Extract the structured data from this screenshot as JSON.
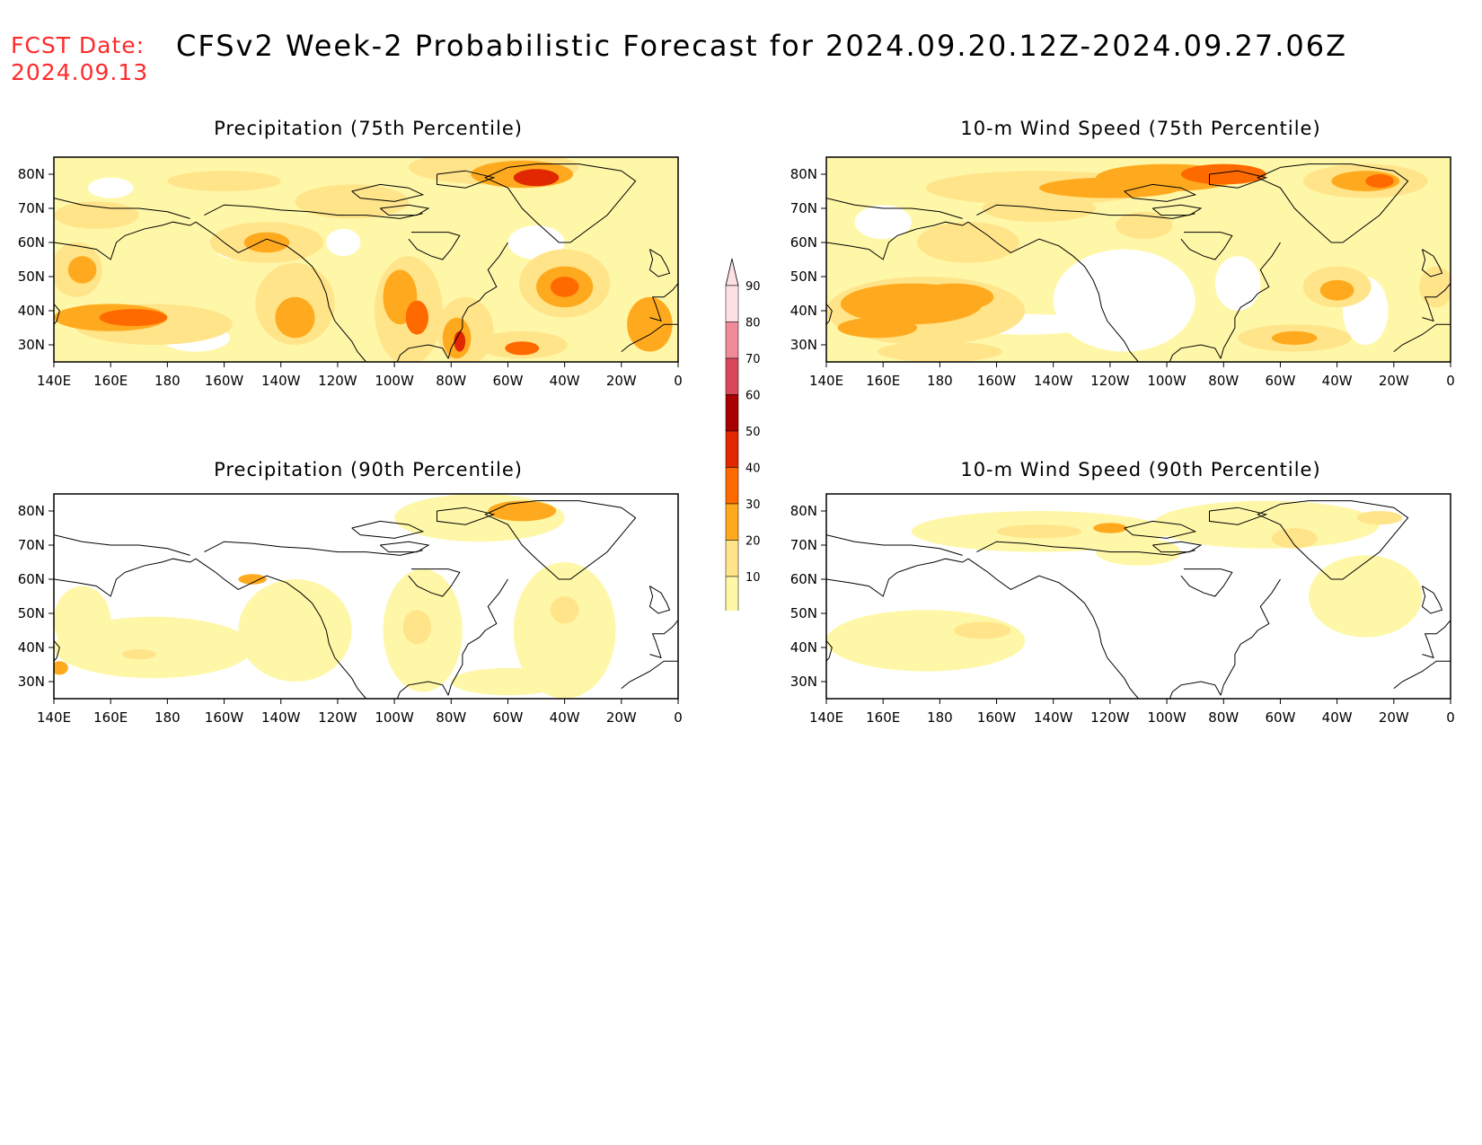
{
  "header": {
    "fcst_label": "FCST Date:",
    "fcst_date": "2024.09.13",
    "title": "CFSv2 Week-2 Probabilistic Forecast for 2024.09.20.12Z-2024.09.27.06Z"
  },
  "lon_ticks": [
    "140E",
    "160E",
    "180",
    "160W",
    "140W",
    "120W",
    "100W",
    "80W",
    "60W",
    "40W",
    "20W",
    "0"
  ],
  "lat_ticks": [
    "80N",
    "70N",
    "60N",
    "50N",
    "40N",
    "30N"
  ],
  "panels": [
    {
      "id": "p75",
      "title": "Precipitation (75th Percentile)",
      "intensity": "high",
      "type": "precip"
    },
    {
      "id": "w75",
      "title": "10-m Wind Speed (75th Percentile)",
      "intensity": "high",
      "type": "wind"
    },
    {
      "id": "p90",
      "title": "Precipitation (90th Percentile)",
      "intensity": "low",
      "type": "precip"
    },
    {
      "id": "w90",
      "title": "10-m Wind Speed (90th Percentile)",
      "intensity": "low",
      "type": "wind"
    }
  ],
  "colorbar": {
    "levels": [
      "10",
      "20",
      "30",
      "40",
      "50",
      "60",
      "70",
      "80",
      "90"
    ],
    "colors": [
      "#fff7a8",
      "#ffe48a",
      "#ffaa1e",
      "#ff6a00",
      "#e12800",
      "#a80000",
      "#d9475a",
      "#f08a98",
      "#fde0e4"
    ]
  },
  "colors": {
    "fcst_text": "#ff2a2a",
    "coast": "#000000"
  }
}
